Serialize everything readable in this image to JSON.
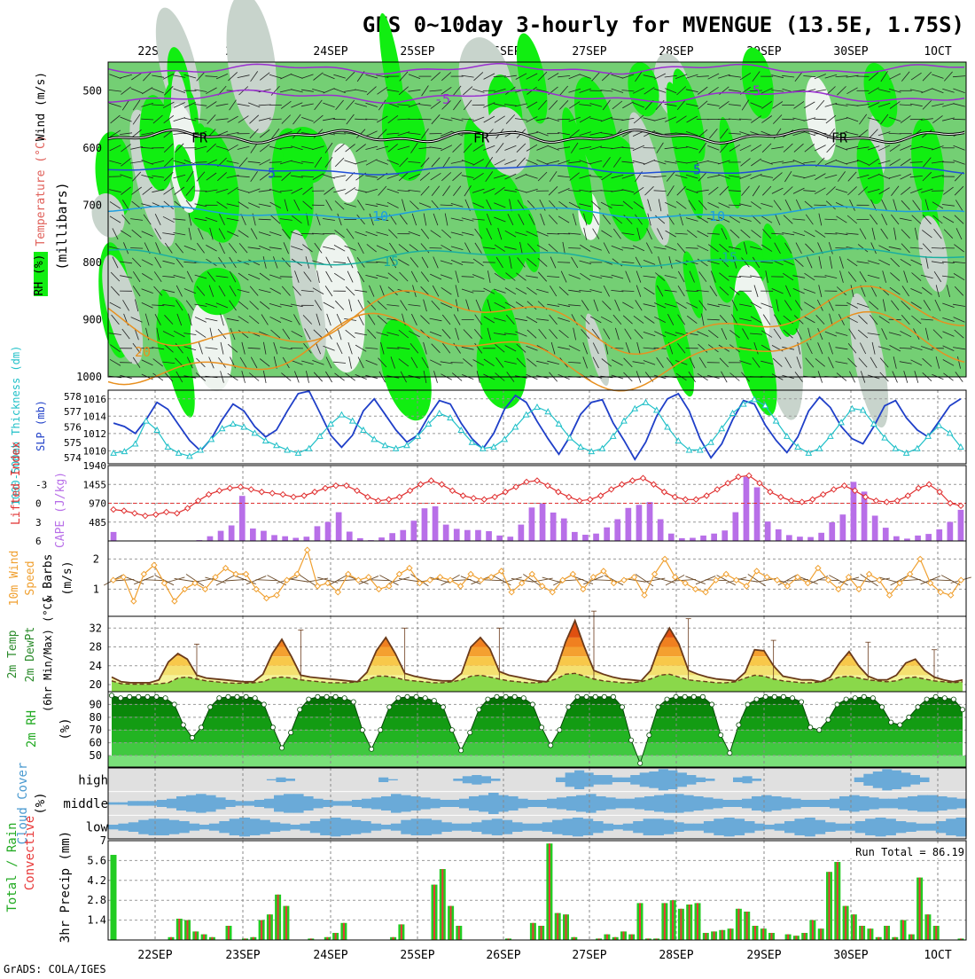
{
  "title": "GFS 0~10day 3-hourly for MVENGUE (13.5E, 1.75S)",
  "footer": "GrADS: COLA/IGES",
  "dates": [
    "22SEP",
    "23SEP",
    "24SEP",
    "25SEP",
    "26SEP",
    "27SEP",
    "28SEP",
    "29SEP",
    "30SEP",
    "1OCT"
  ],
  "colors": {
    "rh_light": "#c8d4cc",
    "rh_mid": "#74cf74",
    "rh_high": "#11ee11",
    "rh_white": "#eef4ef",
    "temp_neg": "#9a2ed0",
    "temp_5": "#1f4fd8",
    "temp_10": "#1d9ee0",
    "temp_15": "#1aafa0",
    "temp_20": "#e89020",
    "fr": "#000000",
    "slp": "#1f3fc8",
    "thickness": "#20c0c8",
    "cape": "#b86fe8",
    "lifted_index": "#e03030",
    "wind": "#f0a030",
    "rain_total": "#22cc22",
    "rain_conv": "#e83838",
    "cloud": "#6aaad8",
    "cloud_bg": "#e0e0e0"
  },
  "chart_data": [
    {
      "type": "area",
      "id": "upper_air",
      "ylabel": [
        "RH (%)",
        "Temperature (°C)",
        "Wind (m/s)",
        "(millibars)"
      ],
      "y_ticks": [
        500,
        600,
        700,
        800,
        900,
        1000
      ],
      "ylim": [
        450,
        1000
      ],
      "isotherm_labels": [
        {
          "text": "-5"
        },
        {
          "text": "-5"
        },
        {
          "text": "FR"
        },
        {
          "text": "FR"
        },
        {
          "text": "FR"
        },
        {
          "text": "5"
        },
        {
          "text": "5"
        },
        {
          "text": "10"
        },
        {
          "text": "10"
        },
        {
          "text": "15"
        },
        {
          "text": "15"
        },
        {
          "text": "20"
        }
      ]
    },
    {
      "type": "line",
      "id": "slp_thickness",
      "ylabel_left": "1000-500mb Thickness (dm)",
      "ylabel_right": "SLP (mb)",
      "y_ticks_left": [
        574,
        575,
        576,
        577,
        578
      ],
      "y_ticks_right": [
        1010,
        1012,
        1014,
        1016
      ],
      "slp": [
        1013.2,
        1012.8,
        1012.0,
        1013.6,
        1015.6,
        1014.8,
        1013.0,
        1011.2,
        1010.0,
        1011.4,
        1013.6,
        1015.4,
        1014.6,
        1012.8,
        1011.6,
        1012.4,
        1014.6,
        1016.6,
        1016.9,
        1014.4,
        1011.8,
        1010.4,
        1011.8,
        1014.6,
        1016.0,
        1014.2,
        1012.4,
        1011.0,
        1011.8,
        1014.0,
        1015.8,
        1015.4,
        1013.2,
        1011.4,
        1010.2,
        1012.0,
        1014.8,
        1016.4,
        1015.6,
        1013.4,
        1011.4,
        1009.6,
        1011.6,
        1014.2,
        1015.6,
        1015.9,
        1013.2,
        1011.2,
        1009.0,
        1011.0,
        1014.0,
        1016.0,
        1016.6,
        1014.6,
        1011.4,
        1009.2,
        1010.8,
        1013.6,
        1015.8,
        1015.4,
        1013.0,
        1011.2,
        1009.8,
        1011.6,
        1014.6,
        1016.2,
        1015.0,
        1012.8,
        1011.4,
        1010.8,
        1012.8,
        1015.2,
        1015.8,
        1013.8,
        1012.4,
        1011.6,
        1013.4,
        1015.2,
        1016.0
      ],
      "thickness": [
        574.3,
        574.4,
        574.9,
        576.4,
        575.8,
        574.7,
        574.3,
        574.1,
        574.5,
        575.2,
        575.9,
        576.2,
        576.0,
        575.6,
        575.1,
        574.8,
        574.5,
        574.3,
        574.6,
        575.4,
        576.2,
        576.8,
        576.4,
        575.8,
        575.2,
        574.8,
        574.6,
        574.8,
        575.4,
        576.2,
        576.9,
        576.6,
        575.8,
        575.0,
        574.6,
        574.7,
        575.2,
        576.0,
        576.8,
        577.3,
        577.0,
        576.2,
        575.3,
        574.7,
        574.4,
        574.6,
        575.4,
        576.4,
        577.2,
        577.6,
        577.1,
        576.0,
        575.1,
        574.5,
        574.5,
        575.0,
        575.9,
        576.9,
        577.5,
        577.8,
        577.4,
        576.4,
        575.4,
        574.7,
        574.3,
        574.6,
        575.4,
        576.3,
        577.2,
        577.1,
        576.2,
        575.3,
        574.6,
        574.3,
        574.6,
        575.4,
        576.1,
        575.6,
        574.7
      ]
    },
    {
      "type": "bar",
      "id": "cape_li",
      "ylabel_left": "Lifted Index",
      "ylabel_right": "CAPE (J/kg)",
      "y_ticks_left": [
        -3,
        0,
        3,
        6
      ],
      "y_ticks_right": [
        485,
        970,
        1455,
        1940
      ],
      "cape": [
        230,
        0,
        0,
        0,
        0,
        0,
        0,
        0,
        20,
        120,
        260,
        400,
        1160,
        320,
        260,
        150,
        120,
        80,
        110,
        380,
        490,
        740,
        240,
        70,
        20,
        90,
        200,
        280,
        520,
        840,
        890,
        420,
        310,
        280,
        280,
        250,
        140,
        110,
        420,
        860,
        960,
        730,
        580,
        230,
        160,
        190,
        350,
        560,
        850,
        930,
        1000,
        560,
        190,
        70,
        80,
        140,
        190,
        270,
        740,
        1650,
        1380,
        500,
        300,
        150,
        110,
        100,
        210,
        480,
        680,
        1520,
        1270,
        650,
        340,
        120,
        60,
        140,
        180,
        300,
        490,
        800
      ],
      "lifted_index": [
        1.0,
        1.2,
        1.6,
        2.0,
        1.8,
        1.4,
        1.6,
        0.8,
        -0.4,
        -1.4,
        -2.0,
        -2.4,
        -2.6,
        -2.2,
        -1.8,
        -1.6,
        -1.4,
        -1.0,
        -1.2,
        -1.8,
        -2.4,
        -2.8,
        -2.8,
        -2.0,
        -1.0,
        -0.4,
        -0.6,
        -1.0,
        -2.0,
        -3.0,
        -3.6,
        -3.0,
        -2.0,
        -1.2,
        -0.8,
        -0.6,
        -1.0,
        -1.8,
        -2.6,
        -3.4,
        -3.6,
        -2.8,
        -1.8,
        -1.0,
        -0.4,
        -0.6,
        -1.2,
        -2.2,
        -3.0,
        -3.6,
        -4.0,
        -3.0,
        -1.8,
        -1.0,
        -0.6,
        -0.6,
        -1.2,
        -2.2,
        -3.2,
        -4.2,
        -4.4,
        -3.2,
        -1.8,
        -1.0,
        -0.4,
        -0.2,
        -0.6,
        -1.4,
        -2.2,
        -2.8,
        -2.0,
        -1.0,
        -0.4,
        -0.2,
        -0.4,
        -1.2,
        -2.4,
        -3.0,
        -1.8,
        0.0,
        0.4
      ]
    },
    {
      "type": "line",
      "id": "wind10m",
      "ylabel": "10m Wind Speed & Barbs (m/s)",
      "y_ticks": [
        1,
        2
      ],
      "speed": [
        1.3,
        1.4,
        0.6,
        1.5,
        1.8,
        1.2,
        0.6,
        1.0,
        1.2,
        1.0,
        1.4,
        1.7,
        1.5,
        1.5,
        1.0,
        0.7,
        0.8,
        1.3,
        1.5,
        2.3,
        1.1,
        1.2,
        0.9,
        1.5,
        1.3,
        1.4,
        1.0,
        1.1,
        1.5,
        1.7,
        1.2,
        1.3,
        1.4,
        1.3,
        1.1,
        1.5,
        1.3,
        1.4,
        1.6,
        0.9,
        1.2,
        1.5,
        1.1,
        0.9,
        1.3,
        1.5,
        1.0,
        1.4,
        1.6,
        1.2,
        1.3,
        1.4,
        0.8,
        1.5,
        2.0,
        1.4,
        1.2,
        1.0,
        0.9,
        1.3,
        1.5,
        1.3,
        1.1,
        1.6,
        1.4,
        1.3,
        1.1,
        1.4,
        1.2,
        1.7,
        1.3,
        1.0,
        1.4,
        1.0,
        1.5,
        1.3,
        0.8,
        1.2,
        1.5,
        2.0,
        1.2,
        0.9,
        0.8,
        1.3
      ]
    },
    {
      "type": "area",
      "id": "temp2m",
      "ylabel": [
        "2m Temp",
        "2m DewPt",
        "(6hr Min/Max) (°C)"
      ],
      "y_ticks": [
        20,
        24,
        28,
        32
      ],
      "temp": [
        21.6,
        20.6,
        20.4,
        20.4,
        20.4,
        21.0,
        24.8,
        26.6,
        25.4,
        22.0,
        21.4,
        21.2,
        21.0,
        20.8,
        20.6,
        20.6,
        22.2,
        26.6,
        29.6,
        26.0,
        22.0,
        21.6,
        21.4,
        21.2,
        21.0,
        20.8,
        20.6,
        22.6,
        27.2,
        30.0,
        26.6,
        22.4,
        21.8,
        21.4,
        21.0,
        20.8,
        20.8,
        22.4,
        28.0,
        30.0,
        27.6,
        22.8,
        22.0,
        21.6,
        21.2,
        20.8,
        20.6,
        23.0,
        29.0,
        33.6,
        28.0,
        23.0,
        22.2,
        21.6,
        21.2,
        21.0,
        20.8,
        23.0,
        28.6,
        32.0,
        28.6,
        23.0,
        22.2,
        21.6,
        21.2,
        21.0,
        20.8,
        22.6,
        27.4,
        27.2,
        24.0,
        21.8,
        21.4,
        21.0,
        21.0,
        20.6,
        21.6,
        24.6,
        27.0,
        24.0,
        21.8,
        21.0,
        21.0,
        22.0,
        24.6,
        25.4,
        23.0,
        21.6,
        21.0,
        20.6,
        21.0
      ],
      "dewpt": [
        20.8,
        20.2,
        20.1,
        20.1,
        20.1,
        20.2,
        20.4,
        21.4,
        21.6,
        21.2,
        20.8,
        20.6,
        20.4,
        20.3,
        20.3,
        20.4,
        20.6,
        21.4,
        21.6,
        21.4,
        21.0,
        20.8,
        20.6,
        20.4,
        20.4,
        20.4,
        20.6,
        21.0,
        21.8,
        21.8,
        21.5,
        21.0,
        20.8,
        20.6,
        20.4,
        20.4,
        20.6,
        21.0,
        21.8,
        22.0,
        21.6,
        21.2,
        20.8,
        20.6,
        20.4,
        20.4,
        20.6,
        21.2,
        22.2,
        22.4,
        21.8,
        21.2,
        20.8,
        20.6,
        20.4,
        20.4,
        20.6,
        21.2,
        22.0,
        22.2,
        21.6,
        21.0,
        20.8,
        20.6,
        20.4,
        20.4,
        20.6,
        21.4,
        22.0,
        21.8,
        21.2,
        20.8,
        20.6,
        20.4,
        20.4,
        20.6,
        21.0,
        21.6,
        21.8,
        21.4,
        21.0,
        20.8,
        20.6,
        20.8,
        21.4,
        21.6,
        21.2,
        20.8,
        20.6,
        20.4,
        20.6
      ]
    },
    {
      "type": "area",
      "id": "rh2m",
      "ylabel": "2m RH (%)",
      "y_ticks": [
        50,
        60,
        70,
        80,
        90
      ],
      "rh": [
        97,
        95,
        96,
        96,
        96,
        96,
        95,
        90,
        74,
        64,
        72,
        88,
        95,
        96,
        96,
        96,
        95,
        90,
        72,
        56,
        68,
        86,
        94,
        96,
        96,
        96,
        95,
        92,
        70,
        55,
        70,
        88,
        95,
        96,
        96,
        95,
        93,
        88,
        70,
        54,
        68,
        86,
        94,
        96,
        96,
        96,
        95,
        90,
        72,
        58,
        70,
        88,
        96,
        96,
        96,
        96,
        96,
        88,
        62,
        44,
        66,
        88,
        94,
        96,
        96,
        96,
        96,
        90,
        66,
        52,
        74,
        90,
        94,
        96,
        96,
        96,
        95,
        92,
        72,
        70,
        78,
        90,
        94,
        95,
        96,
        95,
        88,
        76,
        74,
        80,
        88,
        94,
        96,
        95,
        94,
        86
      ]
    },
    {
      "type": "heatmap",
      "id": "cloud",
      "ylabel": "Cloud Cover (%)",
      "row_labels": [
        "high",
        "middle",
        "low"
      ],
      "high": [
        0,
        0,
        0,
        0,
        0,
        0,
        0,
        0,
        0,
        0,
        0,
        0,
        0,
        0,
        0,
        0,
        0,
        5,
        20,
        10,
        0,
        0,
        0,
        0,
        0,
        0,
        0,
        0,
        0,
        20,
        5,
        0,
        0,
        0,
        0,
        0,
        0,
        10,
        30,
        40,
        30,
        10,
        0,
        0,
        0,
        0,
        0,
        0,
        20,
        60,
        80,
        60,
        40,
        40,
        20,
        20,
        40,
        60,
        70,
        90,
        80,
        60,
        40,
        20,
        10,
        0,
        0,
        20,
        30,
        10,
        0,
        0,
        0,
        0,
        0,
        0,
        0,
        0,
        0,
        0,
        20,
        50,
        70,
        90,
        80,
        60,
        40,
        20,
        0,
        0,
        0,
        0
      ],
      "middle": [
        10,
        10,
        20,
        20,
        20,
        30,
        40,
        60,
        70,
        80,
        70,
        50,
        30,
        20,
        20,
        30,
        40,
        70,
        80,
        80,
        60,
        40,
        30,
        20,
        20,
        30,
        40,
        50,
        60,
        80,
        70,
        60,
        50,
        40,
        30,
        30,
        40,
        60,
        70,
        90,
        70,
        60,
        40,
        30,
        30,
        40,
        50,
        60,
        70,
        80,
        60,
        50,
        40,
        40,
        50,
        60,
        70,
        80,
        80,
        70,
        60,
        50,
        40,
        30,
        30,
        40,
        60,
        70,
        60,
        50,
        40,
        30,
        30,
        30,
        40,
        60,
        70,
        60,
        50,
        40,
        40,
        50,
        60,
        70,
        70,
        60,
        50,
        40
      ],
      "low": [
        20,
        30,
        40,
        60,
        70,
        70,
        60,
        50,
        30,
        20,
        30,
        50,
        70,
        80,
        70,
        60,
        40,
        30,
        20,
        30,
        50,
        70,
        80,
        70,
        60,
        50,
        30,
        20,
        30,
        60,
        70,
        70,
        60,
        40,
        30,
        30,
        40,
        60,
        70,
        60,
        40,
        30,
        30,
        40,
        60,
        70,
        80,
        70,
        50,
        30,
        20,
        30,
        50,
        70,
        70,
        60,
        40,
        30,
        30,
        50,
        70,
        80,
        70,
        50,
        30,
        20,
        30,
        50,
        70,
        80,
        60,
        40,
        30,
        30,
        50,
        70,
        80,
        70,
        50,
        40,
        30,
        30,
        50,
        70,
        80
      ]
    },
    {
      "type": "bar",
      "id": "precip",
      "ylabel": "3hr Precip (mm)",
      "series_labels": [
        "Total / Rain",
        "Convective"
      ],
      "y_ticks": [
        1.4,
        2.8,
        4.2,
        5.6,
        7
      ],
      "annotation": "Run Total = 86.19",
      "total": [
        6.0,
        0,
        0,
        0,
        0,
        0,
        0,
        0.2,
        1.5,
        1.4,
        0.6,
        0.4,
        0.2,
        0,
        1.0,
        0,
        0.1,
        0.2,
        1.4,
        1.8,
        3.2,
        2.4,
        0,
        0,
        0.1,
        0,
        0.2,
        0.5,
        1.2,
        0,
        0,
        0,
        0,
        0,
        0.2,
        1.1,
        0,
        0,
        0,
        3.9,
        5.0,
        2.4,
        1.0,
        0,
        0,
        0,
        0,
        0,
        0.1,
        0,
        0,
        1.2,
        1.0,
        6.8,
        1.9,
        1.8,
        0.2,
        0,
        0,
        0.1,
        0.4,
        0.2,
        0.6,
        0.4,
        2.6,
        0.1,
        0.1,
        2.6,
        2.8,
        2.2,
        2.5,
        2.6,
        0.5,
        0.6,
        0.7,
        0.8,
        2.2,
        2.0,
        1.0,
        0.8,
        0.5,
        0,
        0.4,
        0.3,
        0.5,
        1.4,
        0.8,
        4.8,
        5.5,
        2.4,
        1.8,
        1.0,
        0.8,
        0.2,
        1.0,
        0.2,
        1.4,
        0.4,
        4.4,
        1.8,
        1.0,
        0,
        0,
        0.1
      ]
    }
  ]
}
